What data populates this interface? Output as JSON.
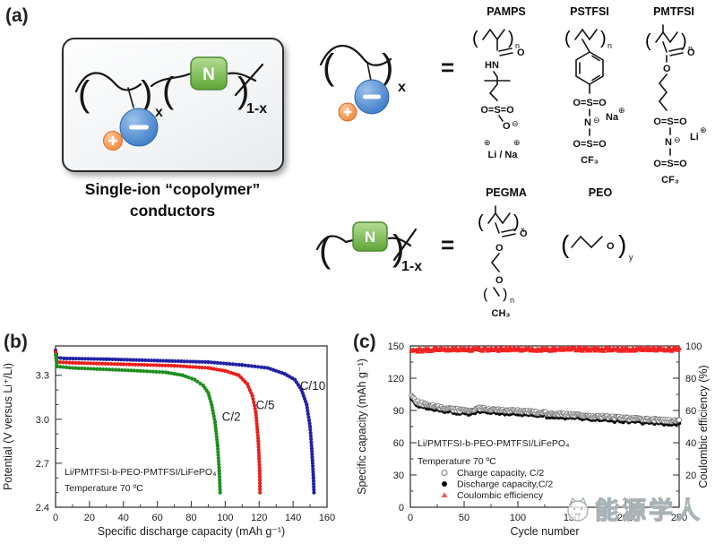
{
  "figure": {
    "panel_a_label": "(a)",
    "panel_b_label": "(b)",
    "panel_c_label": "(c)"
  },
  "panel_a": {
    "caption_line1": "Single-ion “copolymer”",
    "caption_line2": "conductors",
    "equals": "=",
    "x_sub": "x",
    "one_minus_x_sub": "1-x",
    "neutral_block_letter": "N",
    "icons": {
      "anion": "minus-in-blue-circle",
      "cation": "plus-in-orange-circle"
    },
    "colors": {
      "anion_blue": "#3d7cc9",
      "cation_orange": "#f0883e",
      "neutral_green": "#5ea636"
    },
    "structures": {
      "pamps": {
        "title": "PAMPS",
        "n": "n",
        "carbonyl_o": "O",
        "amide": "HN",
        "sulfonyl": "O=S=O",
        "anion_o": "O",
        "minus": "⊖",
        "plus": "⊕",
        "cations": "Li / Na"
      },
      "pstfsi": {
        "title": "PSTFSI",
        "n": "n",
        "sulfonyl": "O=S=O",
        "nitrogen": "N",
        "minus": "⊖",
        "cation": "Na",
        "plus": "⊕",
        "cf3": "CF₃"
      },
      "pmtfsi": {
        "title": "PMTFSI",
        "n": "n",
        "carbonyl_o": "O",
        "ester_o": "O",
        "sulfonyl": "O=S=O",
        "nitrogen": "N",
        "minus": "⊖",
        "cation": "Li",
        "plus": "⊕",
        "cf3": "CF₃"
      },
      "pegma": {
        "title": "PEGMA",
        "x": "x",
        "carbonyl_o": "O",
        "ester_o": "O",
        "ether_o": "O",
        "n": "n",
        "terminal": "CH₃"
      },
      "peo": {
        "title": "PEO",
        "o": "O",
        "y": "y"
      }
    }
  },
  "watermark": {
    "text": "能源学人"
  },
  "chart_data": [
    {
      "type": "line",
      "panel": "b",
      "xlabel": "Specific discharge capacity (mAh g⁻¹)",
      "ylabel": "Potential (V versus Li⁺/Li)",
      "xlim": [
        0,
        160
      ],
      "ylim": [
        2.4,
        3.5
      ],
      "xticks": [
        0,
        20,
        40,
        60,
        80,
        100,
        120,
        140,
        160
      ],
      "xtick_labels": [
        "0",
        "20",
        "40",
        "60",
        "80",
        "100",
        "120",
        "140",
        "160"
      ],
      "yticks": [
        2.4,
        2.7,
        3.0,
        3.3
      ],
      "ytick_labels": [
        "2.4",
        "2.7",
        "3.0",
        "3.3"
      ],
      "x_minor_step": 10,
      "y_minor_step": 0.1,
      "grid": false,
      "inset_text": [
        "Li/PMTFSI-b-PEO-PMTFSI/LiFePO₄",
        "Temperature 70 ºC"
      ],
      "annotations": [
        {
          "label": "C/2",
          "x": 98,
          "y": 2.99
        },
        {
          "label": "C/5",
          "x": 118,
          "y": 3.07
        },
        {
          "label": "C/10",
          "x": 144,
          "y": 3.2
        }
      ],
      "series": [
        {
          "name": "C/10",
          "color": "#2121a8",
          "points": [
            [
              0,
              3.47
            ],
            [
              1,
              3.42
            ],
            [
              5,
              3.415
            ],
            [
              30,
              3.41
            ],
            [
              60,
              3.4
            ],
            [
              90,
              3.39
            ],
            [
              110,
              3.37
            ],
            [
              125,
              3.35
            ],
            [
              135,
              3.31
            ],
            [
              141,
              3.27
            ],
            [
              145,
              3.2
            ],
            [
              148,
              3.1
            ],
            [
              150,
              2.95
            ],
            [
              151,
              2.8
            ],
            [
              152,
              2.6
            ],
            [
              152.3,
              2.5
            ]
          ]
        },
        {
          "name": "C/5",
          "color": "#e8201d",
          "points": [
            [
              0,
              3.46
            ],
            [
              1,
              3.39
            ],
            [
              10,
              3.385
            ],
            [
              40,
              3.375
            ],
            [
              70,
              3.365
            ],
            [
              90,
              3.35
            ],
            [
              100,
              3.33
            ],
            [
              108,
              3.3
            ],
            [
              113,
              3.24
            ],
            [
              116,
              3.16
            ],
            [
              118,
              3.05
            ],
            [
              119.5,
              2.85
            ],
            [
              120.3,
              2.65
            ],
            [
              120.5,
              2.5
            ]
          ]
        },
        {
          "name": "C/2",
          "color": "#1f8f1f",
          "points": [
            [
              0,
              3.44
            ],
            [
              1,
              3.36
            ],
            [
              10,
              3.35
            ],
            [
              30,
              3.34
            ],
            [
              50,
              3.33
            ],
            [
              65,
              3.32
            ],
            [
              75,
              3.3
            ],
            [
              82,
              3.27
            ],
            [
              87,
              3.23
            ],
            [
              90,
              3.18
            ],
            [
              92,
              3.1
            ],
            [
              94,
              2.98
            ],
            [
              95.5,
              2.82
            ],
            [
              96.5,
              2.65
            ],
            [
              97,
              2.5
            ]
          ]
        }
      ]
    },
    {
      "type": "scatter",
      "panel": "c",
      "xlabel": "Cycle number",
      "ylabel_left": "Specific capacity (mAh g⁻¹)",
      "ylabel_right": "Coulombic efficiency (%)",
      "xlim": [
        0,
        250
      ],
      "ylim_left": [
        0,
        150
      ],
      "ylim_right": [
        0,
        100
      ],
      "xticks": [
        0,
        50,
        100,
        150,
        200,
        250
      ],
      "xtick_labels": [
        "0",
        "50",
        "100",
        "150",
        "200",
        "250"
      ],
      "yticks_left": [
        0,
        30,
        60,
        90,
        120,
        150
      ],
      "ytick_labels_left": [
        "0",
        "30",
        "60",
        "90",
        "120",
        "150"
      ],
      "yticks_right": [
        0,
        20,
        40,
        60,
        80,
        100
      ],
      "ytick_labels_right": [
        "0",
        "20",
        "40",
        "60",
        "80",
        "100"
      ],
      "x_minor_step": 25,
      "y_left_minor_step": 15,
      "y_right_minor_step": 10,
      "grid": false,
      "cycles": 250,
      "inset_text": [
        "Li/PMTFSI-b-PEO-PMTFSI/LiFePO₄",
        "Temperature 70 ºC"
      ],
      "legend": [
        {
          "marker": "open-circle",
          "label": "Charge capacity, C/2",
          "color": "#7a7a7a"
        },
        {
          "marker": "filled-circle",
          "label": "Discharge capacity,C/2",
          "color": "#0d0d0d"
        },
        {
          "marker": "triangle",
          "label": "Coulombic efficiency",
          "color": "#f22323"
        }
      ],
      "series": [
        {
          "name": "Charge capacity, C/2",
          "marker": "open-circle",
          "color": "#7a7a7a",
          "axis": "left",
          "noise": 2.4,
          "trend": [
            [
              1,
              104
            ],
            [
              2,
              102
            ],
            [
              4,
              99.5
            ],
            [
              8,
              97.5
            ],
            [
              15,
              95.5
            ],
            [
              25,
              93.5
            ],
            [
              35,
              92
            ],
            [
              45,
              90.5
            ],
            [
              55,
              89.5
            ],
            [
              62,
              92
            ],
            [
              70,
              91.5
            ],
            [
              85,
              90.5
            ],
            [
              100,
              89.5
            ],
            [
              115,
              88.5
            ],
            [
              130,
              87.5
            ],
            [
              145,
              86.5
            ],
            [
              160,
              85.5
            ],
            [
              175,
              84.5
            ],
            [
              190,
              83.5
            ],
            [
              205,
              82.5
            ],
            [
              220,
              82
            ],
            [
              235,
              81
            ],
            [
              250,
              80
            ]
          ]
        },
        {
          "name": "Discharge capacity, C/2",
          "marker": "filled-circle",
          "color": "#0d0d0d",
          "axis": "left",
          "offset": -2.0,
          "noise": 1.2
        },
        {
          "name": "Coulombic efficiency",
          "marker": "triangle",
          "color": "#f22323",
          "axis": "right",
          "noise": 2.0,
          "trend": [
            [
              1,
              97.2
            ],
            [
              25,
              98
            ],
            [
              250,
              98
            ]
          ]
        }
      ]
    }
  ]
}
